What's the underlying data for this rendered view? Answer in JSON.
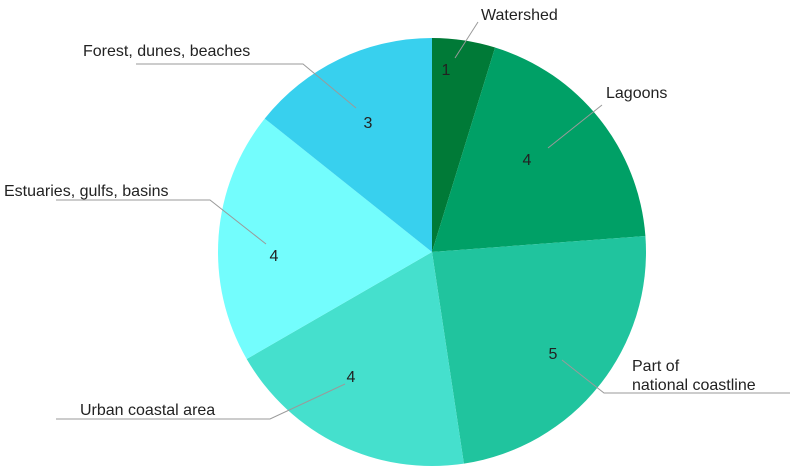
{
  "chart_data": {
    "type": "pie",
    "title": "",
    "start_angle_deg": 0,
    "direction": "clockwise",
    "slices": [
      {
        "label": "Watershed",
        "value": 1,
        "color": "#007a37"
      },
      {
        "label": "Lagoons",
        "value": 4,
        "color": "#00a066"
      },
      {
        "label": "Part of national coastline",
        "label_lines": [
          "Part of",
          "national coastline"
        ],
        "value": 5,
        "color": "#20c49e"
      },
      {
        "label": "Urban coastal area",
        "value": 4,
        "color": "#45e0cd"
      },
      {
        "label": "Estuaries, gulfs, basins",
        "value": 4,
        "color": "#73fdfd"
      },
      {
        "label": "Forest, dunes, beaches",
        "value": 3,
        "color": "#38d0ee"
      }
    ]
  }
}
